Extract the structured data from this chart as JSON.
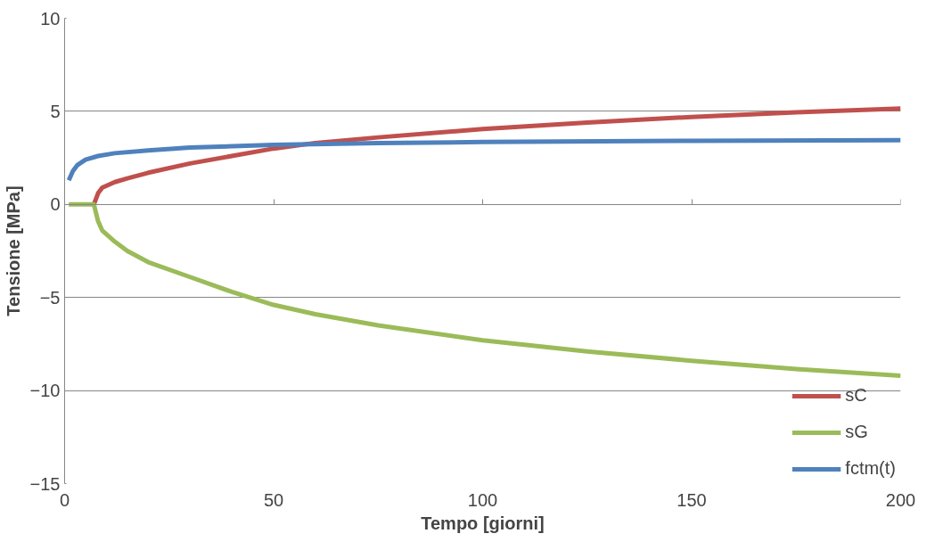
{
  "chart_data": {
    "type": "line",
    "xlabel": "Tempo [giorni]",
    "ylabel": "Tensione [MPa]",
    "xlim": [
      0,
      200
    ],
    "xticks": [
      0,
      50,
      100,
      150,
      200
    ],
    "ylim": [
      -15,
      10
    ],
    "yticks": [
      -15,
      -10,
      -5,
      0,
      5,
      10
    ],
    "grid": "y",
    "legend": "bottom right",
    "line_style": "solid",
    "marker": "none",
    "series": [
      {
        "name": "sC",
        "color": "#c0504d",
        "x": [
          7,
          8,
          9,
          12,
          15,
          20,
          30,
          40,
          50,
          60,
          75,
          100,
          125,
          150,
          175,
          200
        ],
        "values": [
          0,
          0.6,
          0.9,
          1.2,
          1.4,
          1.7,
          2.2,
          2.6,
          3.0,
          3.3,
          3.6,
          4.05,
          4.4,
          4.7,
          4.95,
          5.15
        ]
      },
      {
        "name": "sG",
        "color": "#9bbb59",
        "x": [
          1,
          7,
          8,
          9,
          12,
          15,
          20,
          30,
          40,
          50,
          60,
          75,
          100,
          125,
          150,
          175,
          200
        ],
        "values": [
          0,
          0,
          -0.9,
          -1.4,
          -2.0,
          -2.5,
          -3.1,
          -3.9,
          -4.7,
          -5.4,
          -5.9,
          -6.5,
          -7.3,
          -7.9,
          -8.4,
          -8.85,
          -9.2
        ]
      },
      {
        "name": "fctm(t)",
        "color": "#4f81bd",
        "x": [
          1,
          2,
          3,
          5,
          8,
          12,
          20,
          30,
          50,
          75,
          100,
          150,
          200
        ],
        "values": [
          1.3,
          1.8,
          2.1,
          2.4,
          2.6,
          2.75,
          2.9,
          3.05,
          3.2,
          3.3,
          3.35,
          3.42,
          3.45
        ]
      }
    ]
  }
}
